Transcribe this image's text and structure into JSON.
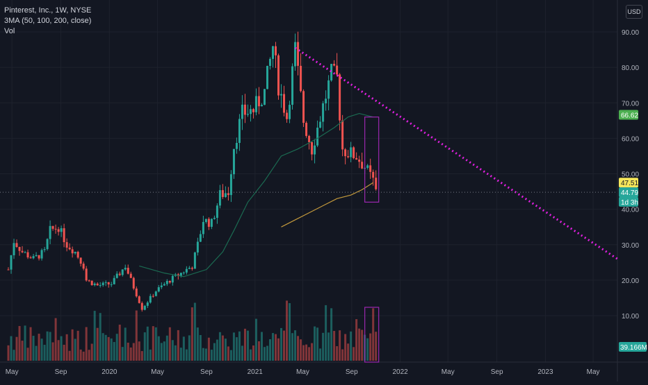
{
  "header": {
    "symbol_line": "Pinterest, Inc., 1W, NYSE",
    "indicator_line": "3MA (50, 100, 200, close)",
    "volume_line": "Vol",
    "currency": "USD"
  },
  "colors": {
    "background": "#131722",
    "up": "#26a69a",
    "down": "#ef5350",
    "ma_short": "#1b6b52",
    "ma_long": "#c49a3c",
    "trendline": "#e020e0",
    "highlight_box": "#9c27b0",
    "price_label_current": "#f5e65b",
    "price_label_ma": "#4caf50",
    "price_label_last": "#26a69a",
    "volume_label": "#26a69a"
  },
  "chart_data": {
    "type": "candlestick",
    "title": "Pinterest, Inc., 1W, NYSE",
    "y_axis": {
      "ticks": [
        "90.00",
        "80.00",
        "70.00",
        "60.00",
        "50.00",
        "40.00",
        "30.00",
        "20.00",
        "10.00"
      ],
      "tick_values": [
        90,
        80,
        70,
        60,
        50,
        40,
        30,
        20,
        10
      ],
      "range": [
        0,
        97
      ]
    },
    "x_axis": {
      "ticks": [
        "May",
        "Sep",
        "2020",
        "May",
        "Sep",
        "2021",
        "May",
        "Sep",
        "2022",
        "May",
        "Sep",
        "2023",
        "May"
      ],
      "tick_dates": [
        "2019-05-01",
        "2019-09-01",
        "2020-01-01",
        "2020-05-01",
        "2020-09-01",
        "2021-01-01",
        "2021-05-01",
        "2021-09-01",
        "2022-01-01",
        "2022-05-01",
        "2022-09-01",
        "2023-01-01",
        "2023-05-01"
      ],
      "range": [
        "2019-04-01",
        "2023-07-01"
      ]
    },
    "price_labels": [
      {
        "text": "66.62",
        "value": 66.62,
        "kind": "ma"
      },
      {
        "text": "47.51",
        "value": 47.51,
        "kind": "current"
      },
      {
        "text": "44.79",
        "value": 44.79,
        "kind": "last"
      },
      {
        "text": "1d 3h",
        "value": 42.1,
        "kind": "last"
      }
    ],
    "volume_label": "39.166M",
    "current_price_line": 44.79,
    "close_path": [
      [
        "2019-04-22",
        23
      ],
      [
        "2019-05-06",
        31
      ],
      [
        "2019-05-27",
        28
      ],
      [
        "2019-06-24",
        26
      ],
      [
        "2019-07-22",
        28
      ],
      [
        "2019-08-05",
        34
      ],
      [
        "2019-08-26",
        35
      ],
      [
        "2019-09-16",
        30
      ],
      [
        "2019-10-07",
        28
      ],
      [
        "2019-10-28",
        24
      ],
      [
        "2019-11-04",
        20
      ],
      [
        "2019-12-02",
        18.5
      ],
      [
        "2020-01-06",
        19
      ],
      [
        "2020-02-10",
        24
      ],
      [
        "2020-03-09",
        16
      ],
      [
        "2020-03-23",
        12
      ],
      [
        "2020-04-27",
        17
      ],
      [
        "2020-06-01",
        20
      ],
      [
        "2020-06-29",
        22
      ],
      [
        "2020-07-27",
        24
      ],
      [
        "2020-08-10",
        30
      ],
      [
        "2020-08-24",
        37
      ],
      [
        "2020-09-14",
        36
      ],
      [
        "2020-10-05",
        44
      ],
      [
        "2020-10-26",
        45
      ],
      [
        "2020-11-09",
        58
      ],
      [
        "2020-11-30",
        67
      ],
      [
        "2020-12-28",
        68
      ],
      [
        "2021-01-25",
        73
      ],
      [
        "2021-02-15",
        86
      ],
      [
        "2021-03-01",
        75
      ],
      [
        "2021-03-22",
        66
      ],
      [
        "2021-04-12",
        85
      ],
      [
        "2021-05-03",
        65
      ],
      [
        "2021-05-24",
        57
      ],
      [
        "2021-06-07",
        63
      ],
      [
        "2021-06-28",
        72
      ],
      [
        "2021-07-12",
        78
      ],
      [
        "2021-07-26",
        77
      ],
      [
        "2021-08-09",
        57
      ],
      [
        "2021-08-23",
        56
      ],
      [
        "2021-09-13",
        55
      ],
      [
        "2021-10-04",
        52
      ],
      [
        "2021-10-25",
        48
      ],
      [
        "2021-11-01",
        45
      ]
    ],
    "wick_range": [
      10,
      90
    ],
    "series": [
      {
        "name": "3MA 50",
        "kind": "line",
        "points": [
          [
            "2020-03-16",
            24
          ],
          [
            "2020-05-18",
            22
          ],
          [
            "2020-07-06",
            21
          ],
          [
            "2020-09-01",
            23
          ],
          [
            "2020-10-12",
            28
          ],
          [
            "2020-11-09",
            34
          ],
          [
            "2020-12-14",
            42
          ],
          [
            "2021-01-25",
            48
          ],
          [
            "2021-03-08",
            55
          ],
          [
            "2021-04-19",
            57
          ],
          [
            "2021-06-07",
            60
          ],
          [
            "2021-07-19",
            63
          ],
          [
            "2021-08-23",
            66
          ],
          [
            "2021-09-20",
            67
          ],
          [
            "2021-10-25",
            66
          ]
        ]
      },
      {
        "name": "3MA 100",
        "kind": "line",
        "points": [
          [
            "2021-03-08",
            35
          ],
          [
            "2021-04-12",
            37
          ],
          [
            "2021-05-17",
            39
          ],
          [
            "2021-06-21",
            41
          ],
          [
            "2021-07-26",
            43
          ],
          [
            "2021-08-30",
            44
          ],
          [
            "2021-09-27",
            45.5
          ],
          [
            "2021-10-25",
            47.5
          ]
        ]
      },
      {
        "name": "trendline",
        "kind": "dotted",
        "points": [
          [
            "2021-04-12",
            85.5
          ],
          [
            "2023-07-01",
            26
          ]
        ]
      }
    ],
    "highlight_boxes": [
      {
        "from": "2021-10-04",
        "to": "2021-11-08",
        "y_low": 42,
        "y_high": 66
      },
      {
        "from": "2021-10-04",
        "to": "2021-11-08",
        "volume_box": true
      }
    ]
  }
}
